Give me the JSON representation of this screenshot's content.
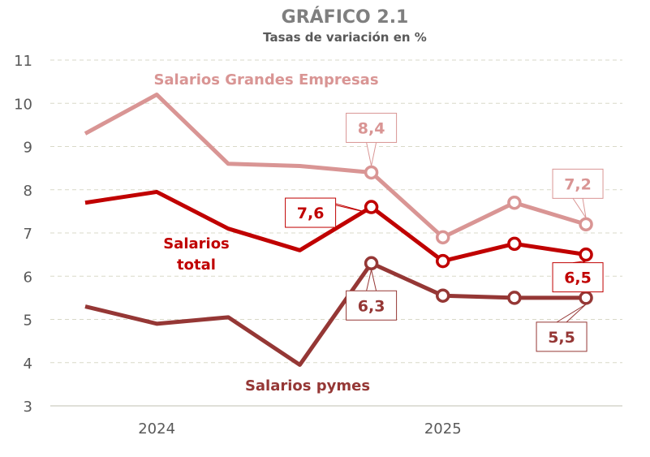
{
  "chart_data": {
    "type": "line",
    "title": "GRÁFICO 2.1",
    "subtitle": "Tasas de variación en %",
    "xlabel": "",
    "ylabel": "",
    "ylim": [
      3,
      11
    ],
    "yticks": [
      "3",
      "4",
      "5",
      "6",
      "7",
      "8",
      "9",
      "10",
      "11"
    ],
    "x_tick_labels": [
      {
        "index": 1,
        "label": "2024"
      },
      {
        "index": 5,
        "label": "2025"
      }
    ],
    "grid": true,
    "series": [
      {
        "name": "Salarios Grandes Empresas",
        "color": "#d99594",
        "values": [
          9.3,
          10.2,
          8.6,
          8.55,
          8.4,
          6.9,
          7.7,
          7.2
        ],
        "labels": [
          {
            "index": 4,
            "text": "8,4"
          },
          {
            "index": 7,
            "text": "7,2"
          }
        ]
      },
      {
        "name": "Salarios total",
        "color": "#c00000",
        "values": [
          7.7,
          7.95,
          7.1,
          6.6,
          7.6,
          6.35,
          6.75,
          6.5
        ],
        "labels": [
          {
            "index": 4,
            "text": "7,6"
          },
          {
            "index": 7,
            "text": "6,5"
          }
        ]
      },
      {
        "name": "Salarios pymes",
        "color": "#953735",
        "values": [
          5.3,
          4.9,
          5.05,
          3.95,
          6.3,
          5.55,
          5.5,
          5.5
        ],
        "labels": [
          {
            "index": 4,
            "text": "6,3"
          },
          {
            "index": 7,
            "text": "5,5"
          }
        ]
      }
    ],
    "legend_text": {
      "grandes": "Salarios Grandes Empresas",
      "total_1": "Salarios",
      "total_2": "total",
      "pymes": "Salarios pymes"
    }
  }
}
